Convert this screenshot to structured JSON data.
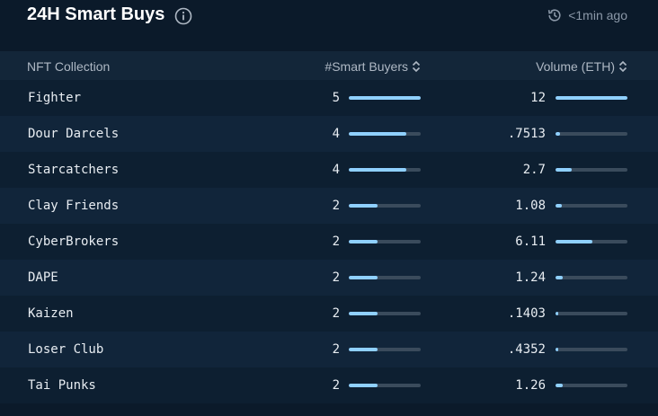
{
  "header": {
    "title": "24H Smart Buys",
    "updated": "<1min ago"
  },
  "table": {
    "columns": {
      "collection": "NFT Collection",
      "buyers": "#Smart Buyers",
      "volume": "Volume (ETH)"
    },
    "max_buyers": 5,
    "max_volume": 12,
    "rows": [
      {
        "name": "Fighter",
        "buyers": "5",
        "volume": "12"
      },
      {
        "name": "Dour Darcels",
        "buyers": "4",
        "volume": ".7513"
      },
      {
        "name": "Starcatchers",
        "buyers": "4",
        "volume": "2.7"
      },
      {
        "name": "Clay Friends",
        "buyers": "2",
        "volume": "1.08"
      },
      {
        "name": "CyberBrokers",
        "buyers": "2",
        "volume": "6.11"
      },
      {
        "name": "DAPE",
        "buyers": "2",
        "volume": "1.24"
      },
      {
        "name": "Kaizen",
        "buyers": "2",
        "volume": ".1403"
      },
      {
        "name": "Loser Club",
        "buyers": "2",
        "volume": ".4352"
      },
      {
        "name": "Tai Punks",
        "buyers": "2",
        "volume": "1.26"
      }
    ]
  },
  "colors": {
    "background": "#0b1a2a",
    "bar_fill": "#8fd0ff",
    "bar_track": "#3a4b5c"
  },
  "icons": {
    "info": "info-icon",
    "clock": "clock-icon",
    "sort": "sort-icon"
  }
}
